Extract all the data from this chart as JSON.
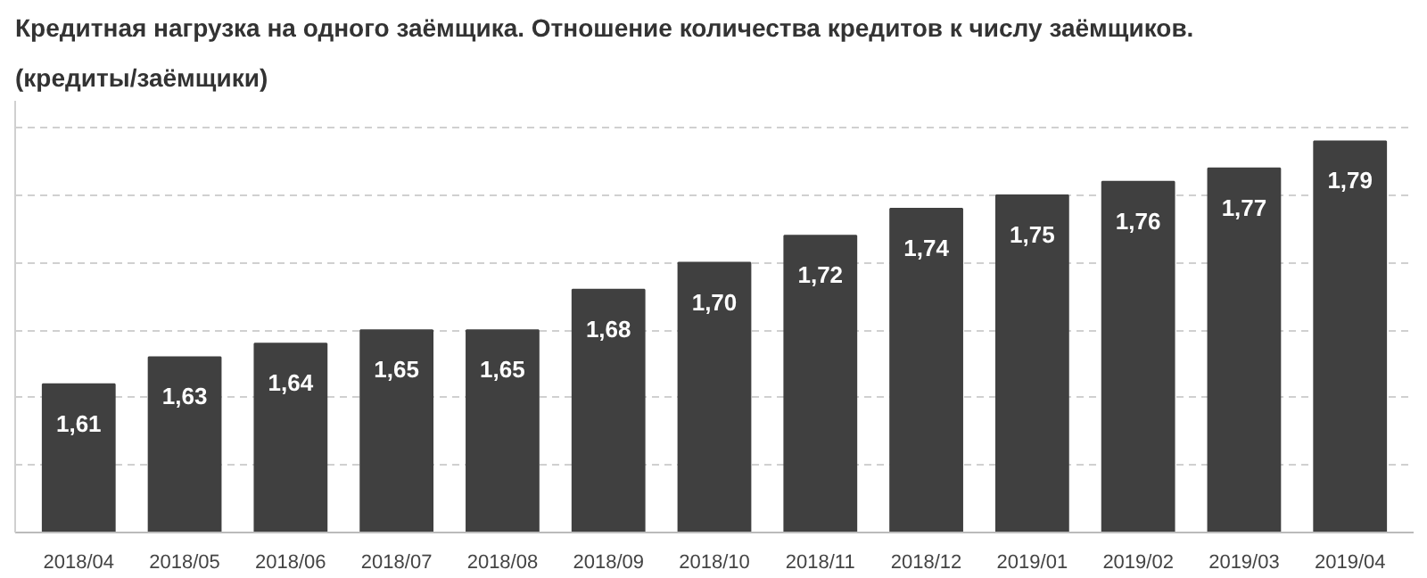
{
  "chart_data": {
    "type": "bar",
    "title": "Кредитная нагрузка на одного заёмщика. Отношение количества кредитов к числу заёмщиков.",
    "subtitle": "(кредиты/заёмщики)",
    "categories": [
      "2018/04",
      "2018/05",
      "2018/06",
      "2018/07",
      "2018/08",
      "2018/09",
      "2018/10",
      "2018/11",
      "2018/12",
      "2019/01",
      "2019/02",
      "2019/03",
      "2019/04"
    ],
    "values": [
      1.61,
      1.63,
      1.64,
      1.65,
      1.65,
      1.68,
      1.7,
      1.72,
      1.74,
      1.75,
      1.76,
      1.77,
      1.79
    ],
    "value_labels": [
      "1,61",
      "1,63",
      "1,64",
      "1,65",
      "1,65",
      "1,68",
      "1,70",
      "1,72",
      "1,74",
      "1,75",
      "1,76",
      "1,77",
      "1,79"
    ],
    "color": "#404040",
    "ylim": [
      1.5,
      1.82
    ],
    "yticks": [
      {
        "value": 1.5,
        "label": null
      },
      {
        "value": 1.55,
        "label": null
      },
      {
        "value": 1.6,
        "label": null
      },
      {
        "value": 1.65,
        "label": null
      },
      {
        "value": 1.7,
        "label": null
      },
      {
        "value": 1.75,
        "label": null
      },
      {
        "value": 1.8,
        "label": null
      }
    ],
    "grid": "y",
    "tick_labels": "x"
  }
}
